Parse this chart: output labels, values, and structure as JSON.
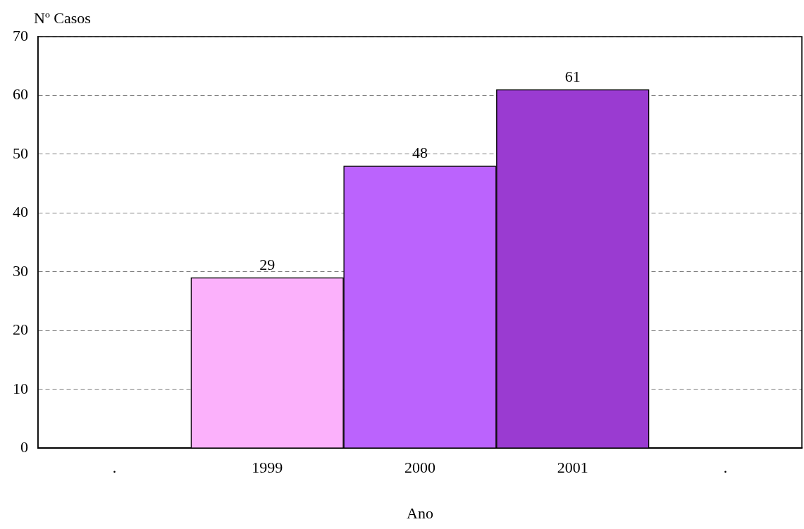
{
  "chart_data": {
    "type": "bar",
    "ylabel": "Nº Casos",
    "xlabel": "Ano",
    "categories": [
      ".",
      "1999",
      "2000",
      "2001",
      "."
    ],
    "values": [
      null,
      29,
      48,
      61,
      null
    ],
    "colors": [
      "#bb63fd",
      "#fbb1fb",
      "#bb63fd",
      "#9a3bd1",
      "#bb63fd"
    ],
    "ylim": [
      0,
      70
    ],
    "yticks": [
      0,
      10,
      20,
      30,
      40,
      50,
      60,
      70
    ],
    "grid": "y",
    "data_labels": true,
    "legend": false
  }
}
